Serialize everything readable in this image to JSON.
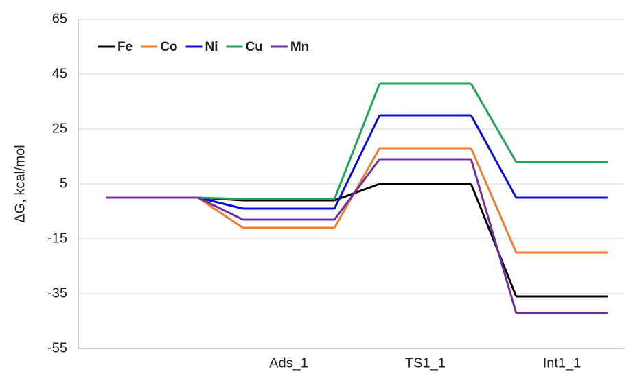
{
  "chart_data": {
    "type": "energy-profile",
    "y_label": "ΔG, kcal/mol",
    "categories": [
      null,
      "Ads_1",
      "TS1_1",
      "Int1_1"
    ],
    "series": [
      {
        "name": "Fe",
        "color": "#000000",
        "values": [
          0,
          -1,
          5,
          -36
        ]
      },
      {
        "name": "Co",
        "color": "#ed7d31",
        "values": [
          0,
          -11,
          18,
          -20
        ]
      },
      {
        "name": "Ni",
        "color": "#0a0ad6",
        "values": [
          0,
          -4,
          30,
          0
        ]
      },
      {
        "name": "Cu",
        "color": "#1fa356",
        "values": [
          0,
          -0.5,
          41.5,
          13
        ]
      },
      {
        "name": "Mn",
        "color": "#7030a0",
        "values": [
          0,
          -8,
          14,
          -42
        ]
      }
    ],
    "ylim": [
      -55,
      65
    ],
    "yticks": [
      -55,
      -35,
      -15,
      5,
      25,
      45,
      65
    ],
    "grid": true,
    "legend": "top-left"
  }
}
